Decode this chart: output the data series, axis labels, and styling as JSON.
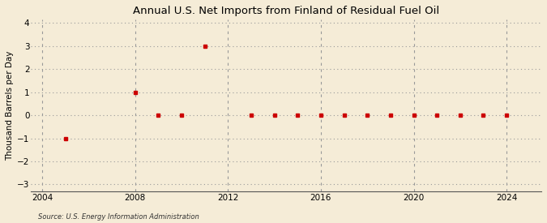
{
  "title": "Annual U.S. Net Imports from Finland of Residual Fuel Oil",
  "ylabel": "Thousand Barrels per Day",
  "source": "Source: U.S. Energy Information Administration",
  "background_color": "#f5ecd7",
  "plot_bg_color": "#f5ecd7",
  "xlim": [
    2003.5,
    2025.5
  ],
  "ylim": [
    -3,
    4
  ],
  "yticks": [
    -3,
    -2,
    -1,
    0,
    1,
    2,
    3,
    4
  ],
  "xticks": [
    2004,
    2008,
    2012,
    2016,
    2020,
    2024
  ],
  "grid_color": "#999999",
  "marker_color": "#cc0000",
  "years": [
    2005,
    2008,
    2009,
    2010,
    2011,
    2013,
    2014,
    2015,
    2016,
    2017,
    2018,
    2019,
    2020,
    2021,
    2022,
    2023,
    2024
  ],
  "values": [
    -1,
    1,
    0,
    0,
    3,
    0,
    0,
    0,
    0,
    0,
    0,
    0,
    0,
    0,
    0,
    0,
    0
  ]
}
